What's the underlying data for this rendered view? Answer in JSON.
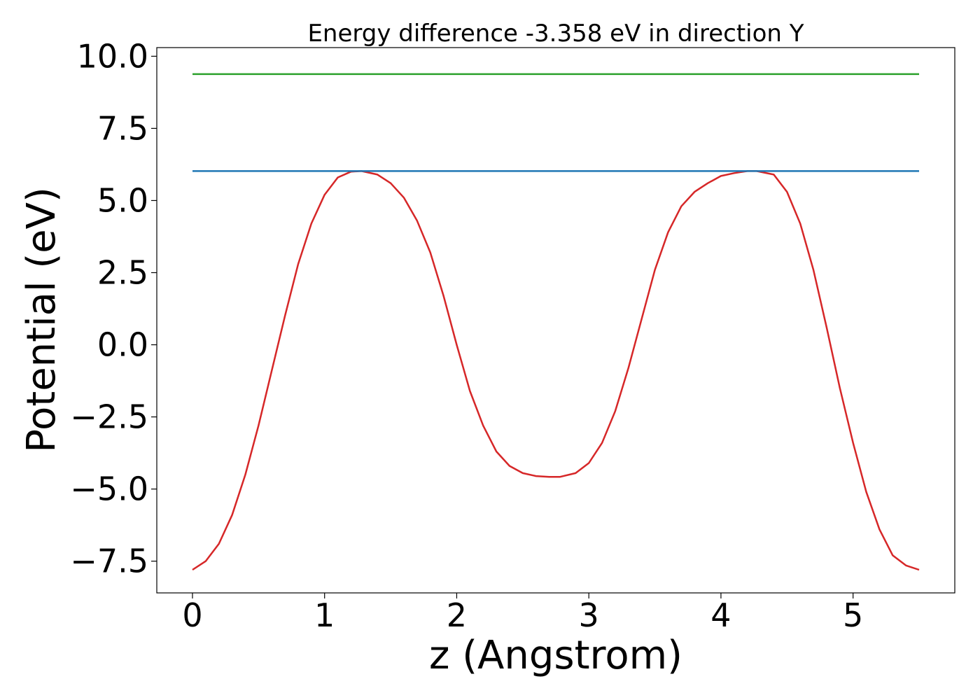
{
  "chart_data": {
    "type": "line",
    "title": "Energy difference -3.358 eV in direction Y",
    "xlabel": "z (Angstrom)",
    "ylabel": "Potential (eV)",
    "xlim": [
      -0.27,
      5.77
    ],
    "ylim": [
      -8.6,
      10.3
    ],
    "xticks": [
      0,
      1,
      2,
      3,
      4,
      5
    ],
    "xtick_labels": [
      "0",
      "1",
      "2",
      "3",
      "4",
      "5"
    ],
    "yticks": [
      -7.5,
      -5.0,
      -2.5,
      0.0,
      2.5,
      5.0,
      7.5,
      10.0
    ],
    "ytick_labels": [
      "−7.5",
      "−5.0",
      "−2.5",
      "0.0",
      "2.5",
      "5.0",
      "7.5",
      "10.0"
    ],
    "grid": false,
    "series": [
      {
        "color": "#d62728",
        "x": [
          0.0,
          0.1,
          0.2,
          0.3,
          0.4,
          0.5,
          0.6,
          0.7,
          0.8,
          0.9,
          1.0,
          1.1,
          1.2,
          1.28,
          1.4,
          1.5,
          1.6,
          1.7,
          1.8,
          1.9,
          2.0,
          2.1,
          2.2,
          2.3,
          2.4,
          2.5,
          2.6,
          2.7,
          2.78,
          2.9,
          3.0,
          3.1,
          3.2,
          3.3,
          3.4,
          3.5,
          3.6,
          3.7,
          3.8,
          3.9,
          4.0,
          4.1,
          4.2,
          4.27,
          4.4,
          4.5,
          4.6,
          4.7,
          4.8,
          4.9,
          5.0,
          5.1,
          5.2,
          5.3,
          5.4,
          5.5
        ],
        "y": [
          -7.8,
          -7.5,
          -6.9,
          -5.9,
          -4.5,
          -2.8,
          -0.9,
          1.0,
          2.8,
          4.2,
          5.2,
          5.8,
          6.0,
          6.02,
          5.9,
          5.6,
          5.1,
          4.3,
          3.2,
          1.7,
          0.0,
          -1.6,
          -2.8,
          -3.7,
          -4.2,
          -4.45,
          -4.55,
          -4.58,
          -4.58,
          -4.45,
          -4.1,
          -3.4,
          -2.3,
          -0.8,
          0.9,
          2.6,
          3.9,
          4.8,
          5.3,
          5.6,
          5.85,
          5.95,
          6.02,
          6.02,
          5.9,
          5.3,
          4.2,
          2.6,
          0.6,
          -1.5,
          -3.4,
          -5.1,
          -6.4,
          -7.3,
          -7.65,
          -7.8
        ]
      },
      {
        "color": "#1f77b4",
        "x": [
          0.0,
          5.5
        ],
        "y": [
          6.02,
          6.02
        ]
      },
      {
        "color": "#2ca02c",
        "x": [
          0.0,
          5.5
        ],
        "y": [
          9.38,
          9.38
        ]
      }
    ]
  }
}
